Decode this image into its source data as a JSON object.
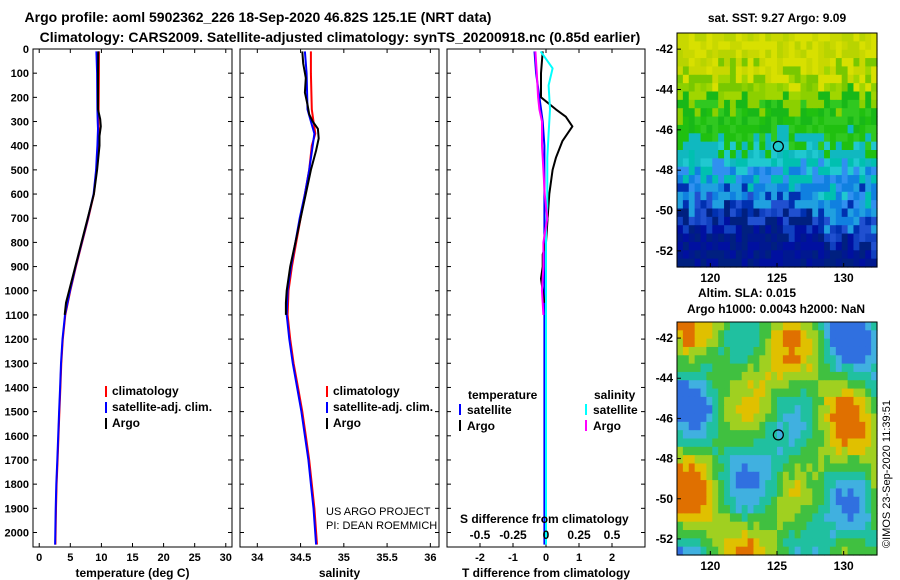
{
  "header": {
    "line1": "Argo profile: aoml 5902362_226 18-Sep-2020 46.82S 125.1E (NRT data)",
    "line2": "Climatology: CARS2009. Satellite-adjusted climatology: synTS_20200918.nc (0.85d earlier)"
  },
  "colors": {
    "argo": "#000000",
    "climatology": "#ff0000",
    "satellite": "#0000ff",
    "argo_salinity_diff": "#ff00ff",
    "satellite_salinity_diff": "#00ffff"
  },
  "chart_data": [
    {
      "type": "line",
      "id": "temperature",
      "xlabel": "temperature (deg C)",
      "ylabel": "",
      "xlim": [
        -1,
        31
      ],
      "ylim": [
        2060,
        0
      ],
      "xticks": [
        0,
        5,
        10,
        15,
        20,
        25,
        30
      ],
      "xtick_labels": [
        "0",
        "5",
        "10",
        "15",
        "20",
        "25",
        "30"
      ],
      "yticks": [
        0,
        100,
        200,
        300,
        400,
        500,
        600,
        700,
        800,
        900,
        1000,
        1100,
        1200,
        1300,
        1400,
        1500,
        1600,
        1700,
        1800,
        1900,
        2000
      ],
      "ytick_labels": [
        "0",
        "100",
        "200",
        "300",
        "400",
        "500",
        "600",
        "700",
        "800",
        "900",
        "1000",
        "1100",
        "1200",
        "1300",
        "1400",
        "1500",
        "1600",
        "1700",
        "1800",
        "1900",
        "2000"
      ],
      "legend": [
        "climatology",
        "satellite-adj. clim.",
        "Argo"
      ],
      "series": [
        {
          "name": "climatology",
          "color": "#ff0000",
          "depth": [
            10,
            100,
            250,
            300,
            330,
            400,
            450,
            500,
            600,
            700,
            800,
            900,
            1000,
            1100,
            1200,
            1300,
            1400,
            1500,
            1600,
            1700,
            1800,
            1900,
            2050
          ],
          "values": [
            9.6,
            9.6,
            9.55,
            9.5,
            9.55,
            9.4,
            9.3,
            9.2,
            8.8,
            7.9,
            6.9,
            5.9,
            5.0,
            4.2,
            3.8,
            3.55,
            3.4,
            3.25,
            3.1,
            2.95,
            2.8,
            2.7,
            2.6
          ]
        },
        {
          "name": "satellite-adj. clim.",
          "color": "#0000ff",
          "depth": [
            10,
            100,
            250,
            300,
            330,
            400,
            450,
            500,
            600,
            700,
            800,
            900,
            1000,
            1100,
            1200,
            1300,
            1400,
            1500,
            1600,
            1700,
            1800,
            1900,
            2050
          ],
          "values": [
            9.2,
            9.3,
            9.35,
            9.4,
            9.45,
            9.35,
            9.25,
            9.15,
            8.75,
            7.85,
            6.85,
            5.85,
            4.95,
            4.15,
            3.75,
            3.5,
            3.35,
            3.2,
            3.05,
            2.9,
            2.75,
            2.65,
            2.55
          ]
        },
        {
          "name": "Argo",
          "color": "#000000",
          "depth": [
            10,
            100,
            250,
            290,
            320,
            360,
            400,
            450,
            500,
            600,
            700,
            800,
            900,
            1000,
            1050,
            1100
          ],
          "values": [
            9.5,
            9.45,
            9.45,
            9.8,
            9.9,
            9.7,
            9.7,
            9.5,
            9.3,
            8.8,
            7.8,
            6.8,
            5.8,
            4.8,
            4.3,
            4.1
          ]
        }
      ]
    },
    {
      "type": "line",
      "id": "salinity",
      "xlabel": "salinity",
      "ylabel": "",
      "xlim": [
        33.8,
        36.1
      ],
      "ylim": [
        2060,
        0
      ],
      "xticks": [
        34,
        34.5,
        35,
        35.5,
        36
      ],
      "xtick_labels": [
        "34",
        "34.5",
        "35",
        "35.5",
        "36"
      ],
      "legend": [
        "climatology",
        "satellite-adj. clim.",
        "Argo"
      ],
      "annotation": [
        "US ARGO PROJECT",
        "PI: DEAN ROEMMICH"
      ],
      "series": [
        {
          "name": "climatology",
          "color": "#ff0000",
          "depth": [
            10,
            100,
            250,
            300,
            350,
            400,
            500,
            600,
            700,
            800,
            900,
            1000,
            1100,
            1200,
            1300,
            1400,
            1500,
            1600,
            1700,
            1800,
            1900,
            2050
          ],
          "values": [
            34.62,
            34.62,
            34.63,
            34.65,
            34.67,
            34.63,
            34.6,
            34.55,
            34.5,
            34.45,
            34.4,
            34.36,
            34.35,
            34.38,
            34.42,
            34.47,
            34.52,
            34.56,
            34.6,
            34.63,
            34.66,
            34.69
          ]
        },
        {
          "name": "satellite-adj. clim.",
          "color": "#0000ff",
          "depth": [
            10,
            100,
            250,
            300,
            350,
            400,
            500,
            600,
            700,
            800,
            900,
            1000,
            1100,
            1200,
            1300,
            1400,
            1500,
            1600,
            1700,
            1800,
            1900,
            2050
          ],
          "values": [
            34.55,
            34.57,
            34.58,
            34.62,
            34.66,
            34.64,
            34.6,
            34.55,
            34.49,
            34.44,
            34.39,
            34.35,
            34.34,
            34.37,
            34.41,
            34.46,
            34.51,
            34.55,
            34.59,
            34.62,
            34.65,
            34.68
          ]
        },
        {
          "name": "Argo",
          "color": "#000000",
          "depth": [
            10,
            60,
            120,
            180,
            230,
            270,
            300,
            330,
            370,
            420,
            500,
            600,
            700,
            800,
            900,
            1000,
            1050,
            1100
          ],
          "values": [
            34.52,
            34.53,
            34.56,
            34.55,
            34.58,
            34.6,
            34.64,
            34.7,
            34.71,
            34.68,
            34.62,
            34.56,
            34.5,
            34.44,
            34.38,
            34.34,
            34.33,
            34.33
          ]
        }
      ]
    },
    {
      "type": "line",
      "id": "differences",
      "xlabel": "T difference from climatology",
      "xlabel_top": "S difference from climatology",
      "ylabel": "",
      "xlim": [
        -3,
        3
      ],
      "ylim": [
        2060,
        0
      ],
      "xticks": [
        -2,
        -1,
        0,
        1,
        2
      ],
      "xtick_labels": [
        "-2",
        "-1",
        "0",
        "1",
        "2"
      ],
      "top_tick_labels": [
        "-0.5",
        "-0.25",
        "0",
        "0.25",
        "0.5"
      ],
      "legend_temperature": {
        "title": "temperature",
        "entries": [
          "satellite",
          "Argo"
        ]
      },
      "legend_salinity": {
        "title": "salinity",
        "entries": [
          "satellite",
          "Argo"
        ]
      },
      "series": [
        {
          "name": "T satellite",
          "color": "#0000ff",
          "depth": [
            10,
            100,
            200,
            300,
            400,
            500,
            600,
            700,
            800,
            900,
            1000,
            1100,
            1200,
            1400,
            1600,
            1800,
            2050
          ],
          "values": [
            -0.35,
            -0.3,
            -0.2,
            -0.1,
            -0.05,
            -0.05,
            -0.05,
            -0.05,
            -0.05,
            -0.05,
            -0.05,
            -0.05,
            -0.05,
            -0.05,
            -0.05,
            -0.05,
            -0.05
          ]
        },
        {
          "name": "T Argo",
          "color": "#000000",
          "depth": [
            10,
            100,
            200,
            250,
            280,
            320,
            380,
            450,
            500,
            600,
            700,
            800,
            850,
            900,
            950,
            1000,
            1050
          ],
          "values": [
            -0.1,
            -0.15,
            -0.15,
            0.3,
            0.6,
            0.8,
            0.5,
            0.3,
            0.2,
            0.1,
            0.05,
            0.0,
            -0.1,
            -0.1,
            -0.15,
            -0.1,
            -0.05
          ]
        },
        {
          "name": "S satellite",
          "color": "#00ffff",
          "depth": [
            10,
            80,
            150,
            250,
            350,
            450,
            550,
            650,
            750,
            850,
            950,
            1050,
            1200,
            1400,
            1600,
            1800,
            2050
          ],
          "values": [
            -0.04,
            0.05,
            0.02,
            0.03,
            0.02,
            0.01,
            0.01,
            0.01,
            0.0,
            0.0,
            0.0,
            0.0,
            0.0,
            0.0,
            0.0,
            0.0,
            0.0
          ]
        },
        {
          "name": "S Argo",
          "color": "#ff00ff",
          "depth": [
            10,
            100,
            200,
            250,
            300,
            400,
            500,
            600,
            700,
            800,
            900,
            1000,
            1100
          ],
          "values": [
            -0.08,
            -0.07,
            -0.06,
            -0.05,
            -0.03,
            -0.03,
            -0.02,
            -0.01,
            0.01,
            -0.02,
            -0.02,
            -0.03,
            -0.02
          ]
        }
      ]
    },
    {
      "type": "heatmap",
      "id": "sst_map",
      "title": "sat. SST: 9.27 Argo: 9.09",
      "xticks": [
        120,
        125,
        130
      ],
      "xtick_labels": [
        "120",
        "125",
        "130"
      ],
      "yticks": [
        -42,
        -44,
        -46,
        -48,
        -50,
        -52
      ],
      "ytick_labels": [
        "-42",
        "-44",
        "-46",
        "-48",
        "-50",
        "-52"
      ],
      "marker": [
        125.1,
        -46.82
      ]
    },
    {
      "type": "heatmap",
      "id": "sla_map",
      "title": "Altim. SLA: 0.015",
      "subtitle": "Argo h1000: 0.0043 h2000: NaN",
      "xticks": [
        120,
        125,
        130
      ],
      "xtick_labels": [
        "120",
        "125",
        "130"
      ],
      "yticks": [
        -42,
        -44,
        -46,
        -48,
        -50,
        -52
      ],
      "ytick_labels": [
        "-42",
        "-44",
        "-46",
        "-48",
        "-50",
        "-52"
      ],
      "marker": [
        125.1,
        -46.82
      ]
    }
  ],
  "credit": "©IMOS 23-Sep-2020 11:39:51"
}
